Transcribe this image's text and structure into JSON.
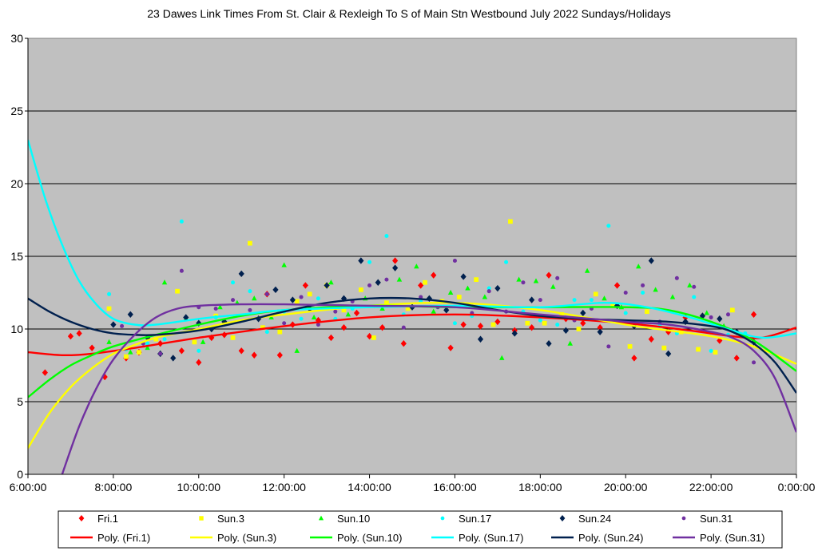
{
  "chart_data": {
    "type": "scatter",
    "title": "23 Dawes Link Times From St. Clair & Rexleigh To S of Main Stn Westbound July 2022  Sundays/Holidays",
    "xlabel": "",
    "ylabel": "",
    "xlim": [
      6,
      24
    ],
    "ylim": [
      0,
      30
    ],
    "x_ticks": [
      "6:00:00",
      "8:00:00",
      "10:00:00",
      "12:00:00",
      "14:00:00",
      "16:00:00",
      "18:00:00",
      "20:00:00",
      "22:00:00",
      "0:00:00"
    ],
    "y_ticks": [
      "0",
      "5",
      "10",
      "15",
      "20",
      "25",
      "30"
    ],
    "grid": "horizontal",
    "legend": "bottom",
    "series": [
      {
        "name": "Fri.1",
        "color": "#ff0000",
        "marker": "diamond",
        "trend_name": "Poly. (Fri.1)",
        "x": [
          6.4,
          7.0,
          7.2,
          7.5,
          7.8,
          8.3,
          8.6,
          9.1,
          9.6,
          10.0,
          10.3,
          10.6,
          11.0,
          11.3,
          11.6,
          11.9,
          12.2,
          12.5,
          12.8,
          13.1,
          13.4,
          13.7,
          14.0,
          14.3,
          14.6,
          14.8,
          15.2,
          15.5,
          15.9,
          16.2,
          16.6,
          17.0,
          17.4,
          17.8,
          18.2,
          18.6,
          19.0,
          19.4,
          19.8,
          20.2,
          20.6,
          21.0,
          21.4,
          21.8,
          22.2,
          22.6,
          23.0
        ],
        "y": [
          7.0,
          9.5,
          9.7,
          8.7,
          6.7,
          8.0,
          8.4,
          9.0,
          8.5,
          7.7,
          9.4,
          9.6,
          8.5,
          8.2,
          12.4,
          8.2,
          10.3,
          13.0,
          10.6,
          9.4,
          10.1,
          11.1,
          9.5,
          10.1,
          14.7,
          9.0,
          13.0,
          13.7,
          8.7,
          10.3,
          10.2,
          10.5,
          9.9,
          10.1,
          13.7,
          10.7,
          10.4,
          10.1,
          13.0,
          8.0,
          9.3,
          9.8,
          10.8,
          10.9,
          9.2,
          8.0,
          11.0
        ]
      },
      {
        "name": "Sun.3",
        "color": "#ffff00",
        "marker": "square",
        "trend_name": "Poly. (Sun.3)",
        "x": [
          7.9,
          8.3,
          8.6,
          9.0,
          9.5,
          9.9,
          10.4,
          10.8,
          11.2,
          11.5,
          11.9,
          12.3,
          12.6,
          13.0,
          13.4,
          13.8,
          14.1,
          14.4,
          14.9,
          15.3,
          15.7,
          16.1,
          16.5,
          16.9,
          17.3,
          17.7,
          18.1,
          18.5,
          18.9,
          19.3,
          19.7,
          20.1,
          20.5,
          20.9,
          21.3,
          21.7,
          22.1,
          22.5
        ],
        "y": [
          11.4,
          8.1,
          8.4,
          9.3,
          12.6,
          9.1,
          10.9,
          9.4,
          15.9,
          10.1,
          9.8,
          11.9,
          12.4,
          13.0,
          11.3,
          12.7,
          9.4,
          11.8,
          11.4,
          13.2,
          11.9,
          12.2,
          13.4,
          10.3,
          17.4,
          10.4,
          10.4,
          11.0,
          10.0,
          12.4,
          11.6,
          8.8,
          11.2,
          8.7,
          9.8,
          8.6,
          8.4,
          11.3
        ]
      },
      {
        "name": "Sun.10",
        "color": "#00ff00",
        "marker": "triangle",
        "trend_name": "Poly. (Sun.10)",
        "x": [
          7.9,
          8.4,
          8.8,
          9.2,
          9.7,
          10.1,
          10.5,
          10.9,
          11.3,
          11.7,
          12.0,
          12.3,
          12.7,
          13.1,
          13.5,
          13.9,
          14.3,
          14.7,
          15.1,
          15.5,
          15.9,
          16.3,
          16.7,
          17.1,
          17.5,
          17.9,
          18.3,
          18.7,
          19.1,
          19.5,
          19.9,
          20.3,
          20.7,
          21.1,
          21.5,
          21.9,
          22.3
        ],
        "y": [
          9.1,
          8.4,
          8.7,
          13.2,
          10.7,
          9.1,
          11.5,
          11.8,
          12.1,
          10.8,
          14.4,
          8.5,
          10.8,
          13.2,
          11.0,
          12.1,
          11.4,
          13.4,
          14.3,
          11.2,
          12.5,
          12.8,
          12.2,
          8.0,
          13.4,
          13.3,
          12.9,
          9.0,
          14.0,
          12.1,
          11.5,
          14.3,
          12.7,
          12.2,
          13.0,
          11.1,
          10.2
        ]
      },
      {
        "name": "Sun.17",
        "color": "#00ffff",
        "marker": "circle",
        "trend_name": "Poly. (Sun.17)",
        "x": [
          7.9,
          8.3,
          8.8,
          9.2,
          9.6,
          10.0,
          10.4,
          10.8,
          11.2,
          11.6,
          12.0,
          12.4,
          12.8,
          13.2,
          13.6,
          14.0,
          14.4,
          14.8,
          15.2,
          15.6,
          16.0,
          16.4,
          16.8,
          17.2,
          17.6,
          18.0,
          18.4,
          18.8,
          19.2,
          19.6,
          20.0,
          20.4,
          20.8,
          21.2,
          21.6,
          22.0,
          22.4,
          22.8
        ],
        "y": [
          12.4,
          8.6,
          9.0,
          9.3,
          17.4,
          8.5,
          10.8,
          13.2,
          12.6,
          9.8,
          11.2,
          10.7,
          12.1,
          10.7,
          11.4,
          14.6,
          16.4,
          11.0,
          11.9,
          11.5,
          10.4,
          10.9,
          12.8,
          14.6,
          11.2,
          10.6,
          10.3,
          12.0,
          12.0,
          17.1,
          11.1,
          12.5,
          10.2,
          9.7,
          12.2,
          8.5,
          9.6,
          9.7
        ]
      },
      {
        "name": "Sun.24",
        "color": "#00204e",
        "marker": "diamond",
        "trend_name": "Poly. (Sun.24)",
        "x": [
          8.0,
          8.4,
          8.8,
          9.1,
          9.4,
          9.7,
          10.0,
          10.3,
          10.6,
          11.0,
          11.4,
          11.8,
          12.2,
          12.6,
          13.0,
          13.4,
          13.8,
          14.2,
          14.6,
          15.0,
          15.4,
          15.8,
          16.2,
          16.6,
          17.0,
          17.4,
          17.8,
          18.2,
          18.6,
          19.0,
          19.4,
          19.8,
          20.2,
          20.6,
          21.0,
          21.4,
          21.8,
          22.2,
          22.6,
          23.0
        ],
        "y": [
          10.3,
          11.0,
          9.4,
          8.3,
          8.0,
          10.8,
          10.4,
          10.0,
          10.5,
          13.8,
          10.7,
          12.7,
          12.0,
          11.4,
          13.0,
          12.1,
          14.7,
          13.2,
          14.2,
          11.5,
          12.1,
          11.3,
          13.6,
          9.3,
          12.8,
          9.7,
          12.0,
          9.0,
          9.9,
          11.1,
          9.8,
          11.6,
          10.2,
          14.7,
          8.3,
          10.5,
          10.9,
          10.7,
          9.8,
          9.1
        ]
      },
      {
        "name": "Sun.31",
        "color": "#7030a0",
        "marker": "circle",
        "trend_name": "Poly. (Sun.31)",
        "x": [
          8.2,
          8.7,
          9.1,
          9.6,
          10.0,
          10.4,
          10.8,
          11.2,
          11.6,
          12.0,
          12.4,
          12.8,
          13.2,
          13.6,
          14.0,
          14.4,
          14.8,
          15.2,
          15.6,
          16.0,
          16.4,
          16.8,
          17.2,
          17.6,
          18.0,
          18.4,
          18.8,
          19.2,
          19.6,
          20.0,
          20.4,
          20.8,
          21.2,
          21.6,
          22.0,
          22.4,
          23.0
        ],
        "y": [
          10.2,
          9.0,
          8.3,
          14.0,
          11.5,
          11.4,
          12.0,
          11.3,
          12.4,
          10.4,
          12.2,
          10.3,
          11.2,
          11.9,
          13.0,
          13.4,
          10.1,
          12.2,
          11.5,
          14.7,
          11.1,
          12.6,
          11.2,
          13.2,
          12.0,
          13.5,
          10.6,
          11.4,
          8.8,
          12.5,
          13.0,
          10.5,
          13.5,
          12.9,
          10.8,
          11.0,
          7.7
        ]
      }
    ],
    "trendlines": [
      {
        "name": "Poly. (Fri.1)",
        "color": "#ff0000",
        "x": [
          6.0,
          6.8,
          7.5,
          8.5,
          10.0,
          12.0,
          14.0,
          16.0,
          18.0,
          20.0,
          21.5,
          22.5,
          23.2,
          24.0
        ],
        "y": [
          8.4,
          8.2,
          8.3,
          8.7,
          9.4,
          10.2,
          10.8,
          11.0,
          10.8,
          10.4,
          9.9,
          9.5,
          9.4,
          10.1
        ]
      },
      {
        "name": "Poly. (Sun.3)",
        "color": "#ffff00",
        "x": [
          6.0,
          6.5,
          7.0,
          7.5,
          8.0,
          8.5,
          9.0,
          10.0,
          11.0,
          12.0,
          14.0,
          16.0,
          18.0,
          20.0,
          21.0,
          22.0,
          23.0,
          24.0
        ],
        "y": [
          1.8,
          4.2,
          6.0,
          7.3,
          8.3,
          8.9,
          9.4,
          10.0,
          10.6,
          11.0,
          11.6,
          11.8,
          11.3,
          10.3,
          9.9,
          9.5,
          8.8,
          7.6
        ]
      },
      {
        "name": "Poly. (Sun.10)",
        "color": "#00ff00",
        "x": [
          6.0,
          6.5,
          7.0,
          7.5,
          8.0,
          9.0,
          10.0,
          11.0,
          12.0,
          14.0,
          16.0,
          18.0,
          20.0,
          21.0,
          22.0,
          23.0,
          24.0
        ],
        "y": [
          5.3,
          6.5,
          7.5,
          8.2,
          8.8,
          9.6,
          10.3,
          10.9,
          11.3,
          11.6,
          11.5,
          11.5,
          11.5,
          11.3,
          10.5,
          9.2,
          7.1
        ]
      },
      {
        "name": "Poly. (Sun.17)",
        "color": "#00ffff",
        "x": [
          6.0,
          6.4,
          6.8,
          7.2,
          7.6,
          8.0,
          8.5,
          9.0,
          10.0,
          11.0,
          12.0,
          14.0,
          16.0,
          18.0,
          19.5,
          20.5,
          21.5,
          22.5,
          23.2,
          24.0
        ],
        "y": [
          23.0,
          19.0,
          15.8,
          13.3,
          11.7,
          10.7,
          10.3,
          10.3,
          10.7,
          11.0,
          11.3,
          11.5,
          11.6,
          11.5,
          11.8,
          11.5,
          10.8,
          9.9,
          9.4,
          9.7
        ]
      },
      {
        "name": "Poly. (Sun.24)",
        "color": "#00204e",
        "x": [
          6.0,
          6.5,
          7.0,
          7.5,
          8.0,
          8.5,
          9.0,
          10.0,
          11.0,
          12.0,
          13.0,
          14.0,
          15.0,
          16.0,
          17.0,
          18.0,
          19.0,
          20.0,
          21.0,
          22.0,
          22.5,
          23.0,
          23.5,
          24.0
        ],
        "y": [
          12.1,
          11.2,
          10.5,
          10.0,
          9.7,
          9.6,
          9.6,
          9.9,
          10.5,
          11.2,
          11.8,
          12.1,
          12.1,
          11.8,
          11.3,
          10.9,
          10.7,
          10.6,
          10.5,
          10.2,
          9.8,
          9.0,
          7.7,
          5.6
        ]
      },
      {
        "name": "Poly. (Sun.31)",
        "color": "#7030a0",
        "x": [
          6.8,
          7.2,
          7.6,
          8.0,
          8.5,
          9.0,
          9.5,
          10.0,
          11.0,
          12.0,
          14.0,
          16.0,
          18.0,
          20.0,
          21.0,
          22.0,
          22.5,
          23.0,
          23.5,
          24.0
        ],
        "y": [
          0.0,
          3.3,
          5.9,
          7.9,
          9.6,
          10.8,
          11.4,
          11.6,
          11.7,
          11.7,
          11.6,
          11.5,
          11.0,
          10.5,
          10.3,
          9.8,
          9.4,
          8.5,
          6.6,
          2.9
        ]
      }
    ]
  },
  "colors": {
    "plot_background": "#c0c0c0",
    "gridline": "#000000"
  }
}
